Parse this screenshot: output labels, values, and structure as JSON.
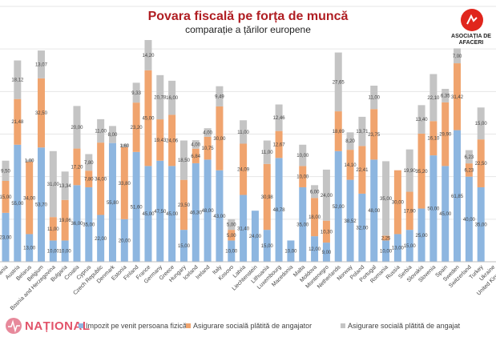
{
  "chart_data": {
    "type": "bar",
    "stacked": true,
    "title": "Povara fiscală pe forța de muncă",
    "subtitle": "comparație a țărilor europene",
    "ylim": [
      0,
      120
    ],
    "grid": true,
    "legend_position": "bottom",
    "categories": [
      "Albania",
      "Austria",
      "Belarus",
      "Belgium",
      "Bosnia and Herzegovina",
      "Bulgaria",
      "Croatia",
      "Cyprus",
      "Czech Republic",
      "Denmark",
      "Estonia",
      "Finland",
      "France",
      "Germany",
      "Greece",
      "Hungary",
      "Iceland",
      "Ireland",
      "Italy",
      "Kosovo",
      "Latvia",
      "Liechtenstein",
      "Lithuania",
      "Luxembourg",
      "Macedonia",
      "Malta",
      "Moldova",
      "Montenegro",
      "Netherlands",
      "Norway",
      "Poland",
      "Portugal",
      "Romania",
      "Russia",
      "Serbia",
      "Slovakia",
      "Slovenia",
      "Spain",
      "Sweden",
      "Switzerland",
      "Turkey",
      "Ukraine",
      "United Kingdom"
    ],
    "series": [
      {
        "name": "Impozit pe venit persoana fizică",
        "color": "#8db6e0",
        "values": [
          23,
          55,
          13,
          53.7,
          10,
          10,
          36,
          35,
          22,
          55.8,
          20,
          51.6,
          45,
          47.5,
          45,
          15,
          46.3,
          48,
          43,
          10,
          31.4,
          24,
          15,
          48.78,
          10,
          35,
          12,
          9,
          52,
          38.52,
          32,
          48,
          10,
          13,
          15,
          25,
          50,
          45,
          61.85,
          40,
          35,
          null,
          null
        ]
      },
      {
        "name": "Asigurare socială plătită de angajator",
        "color": "#f0a46e",
        "values": [
          15,
          21.48,
          34,
          32.5,
          11,
          19.06,
          17.2,
          7.8,
          34,
          0,
          33.8,
          23.2,
          45,
          19.43,
          24.06,
          23.5,
          6.84,
          10.75,
          30,
          5,
          24.09,
          0,
          30.98,
          12.67,
          0,
          10,
          18,
          10.3,
          18.69,
          14.1,
          22.41,
          23.75,
          2.25,
          30,
          17.9,
          35.2,
          16.1,
          29.9,
          31.42,
          6.23,
          22.5,
          null,
          null
        ]
      },
      {
        "name": "Asigurare socială plătită de angajat",
        "color": "#c4c4c4",
        "values": [
          9.5,
          18.12,
          1,
          13.07,
          31,
          13.34,
          20,
          7.8,
          11,
          8,
          1.6,
          9.33,
          14.2,
          20.78,
          16,
          18.5,
          4,
          4,
          9.49,
          5,
          11,
          0,
          11,
          12.46,
          0,
          10,
          6,
          24,
          27.65,
          8.2,
          13.71,
          11,
          35,
          0,
          19.9,
          13.4,
          22.1,
          6.35,
          7,
          6.23,
          15,
          null,
          null
        ]
      }
    ]
  },
  "branding": {
    "publisher": "NAȚIONAL",
    "association": "ASOCIAȚIA DE AFACERI"
  }
}
